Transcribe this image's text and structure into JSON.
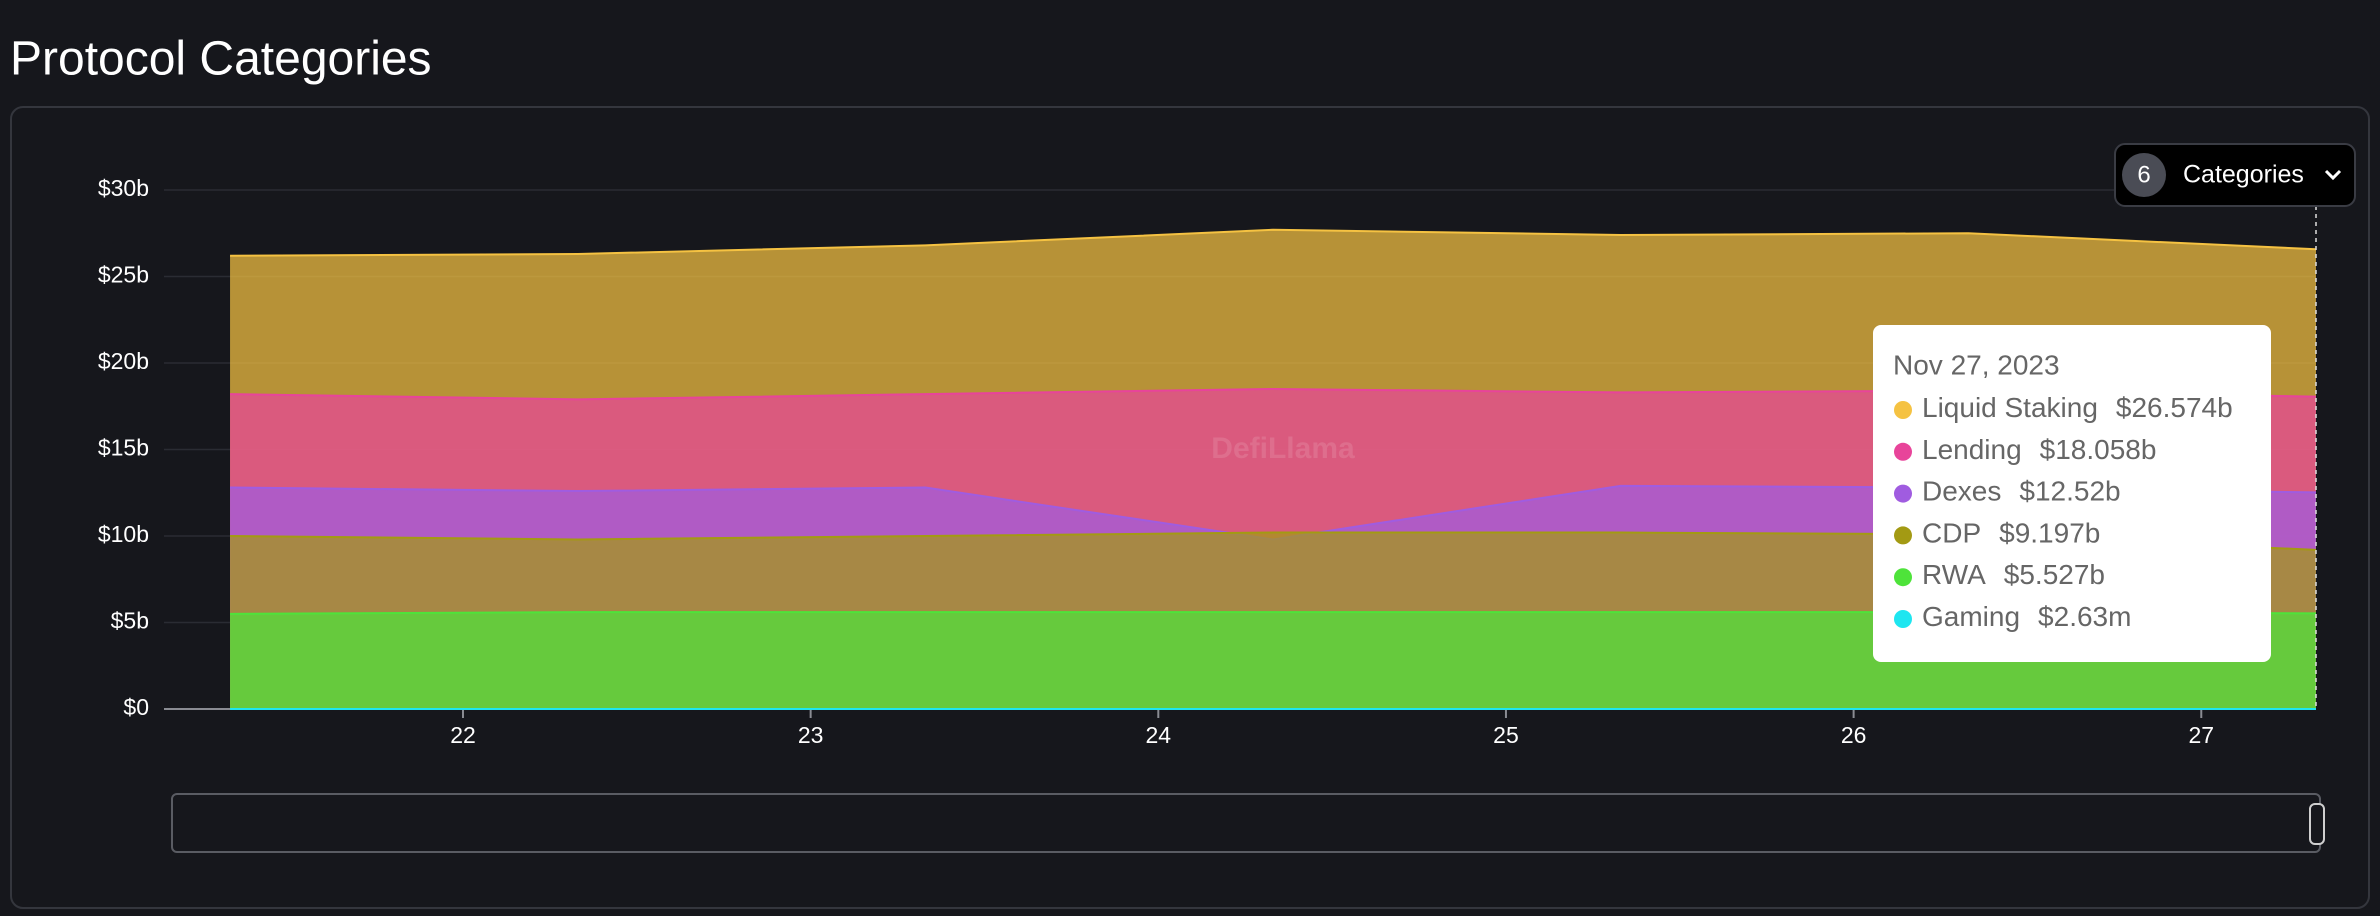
{
  "header": {
    "title": "Protocol Categories"
  },
  "controls": {
    "count": "6",
    "label": "Categories"
  },
  "watermark": "DefiLlama",
  "chart_data": {
    "type": "area",
    "x": [
      21.33,
      22.33,
      23.33,
      24.33,
      25.33,
      26.33,
      27.33
    ],
    "xlim": [
      21.14,
      27.33
    ],
    "xticks": [
      22,
      23,
      24,
      25,
      26,
      27
    ],
    "ylim": [
      0,
      30
    ],
    "yticks": [
      {
        "value": 0,
        "label": "$0"
      },
      {
        "value": 5,
        "label": "$5b"
      },
      {
        "value": 10,
        "label": "$10b"
      },
      {
        "value": 15,
        "label": "$15b"
      },
      {
        "value": 20,
        "label": "$20b"
      },
      {
        "value": 25,
        "label": "$25b"
      },
      {
        "value": 30,
        "label": "$30b"
      }
    ],
    "grid": true,
    "series": [
      {
        "name": "Liquid Staking",
        "color": "#f5c242",
        "values": [
          26.2,
          26.3,
          26.8,
          27.7,
          27.4,
          27.5,
          26.574
        ]
      },
      {
        "name": "Lending",
        "color": "#e8449a",
        "values": [
          18.2,
          17.9,
          18.2,
          18.5,
          18.3,
          18.4,
          18.058
        ]
      },
      {
        "name": "Dexes",
        "color": "#a05ce0",
        "values": [
          12.8,
          12.6,
          12.8,
          9.8,
          12.9,
          12.8,
          12.52
        ]
      },
      {
        "name": "CDP",
        "color": "#a39a13",
        "values": [
          10.0,
          9.8,
          10.0,
          10.2,
          10.2,
          10.1,
          9.197
        ]
      },
      {
        "name": "RWA",
        "color": "#4ee33a",
        "values": [
          5.5,
          5.6,
          5.6,
          5.6,
          5.6,
          5.6,
          5.527
        ]
      },
      {
        "name": "Gaming",
        "color": "#1ee6f0",
        "values": [
          0.00263,
          0.00263,
          0.00263,
          0.00263,
          0.00263,
          0.00263,
          0.00263
        ]
      }
    ],
    "tooltip": {
      "title": "Nov 27, 2023",
      "labels": [
        "$26.574b",
        "$18.058b",
        "$12.52b",
        "$9.197b",
        "$5.527b",
        "$2.63m"
      ]
    }
  }
}
